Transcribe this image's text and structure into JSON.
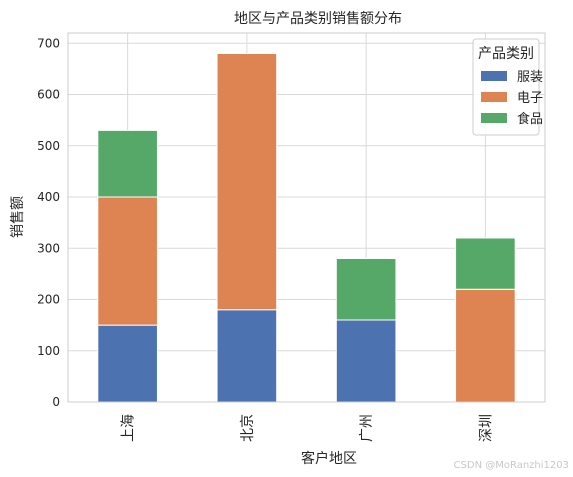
{
  "chart_data": {
    "type": "bar",
    "stacked": true,
    "title": "地区与产品类别销售额分布",
    "xlabel": "客户地区",
    "ylabel": "销售额",
    "categories": [
      "上海",
      "北京",
      "广州",
      "深圳"
    ],
    "series": [
      {
        "name": "服装",
        "color": "#4c72b0",
        "values": [
          150,
          180,
          160,
          0
        ]
      },
      {
        "name": "电子",
        "color": "#dd8452",
        "values": [
          250,
          500,
          0,
          220
        ]
      },
      {
        "name": "食品",
        "color": "#55a868",
        "values": [
          130,
          0,
          120,
          100
        ]
      }
    ],
    "ylim": [
      0,
      720
    ],
    "yticks": [
      0,
      100,
      200,
      300,
      400,
      500,
      600,
      700
    ],
    "grid": true,
    "legend": {
      "title": "产品类别",
      "position": "top-right"
    }
  },
  "watermark": "CSDN @MoRanzhi1203"
}
